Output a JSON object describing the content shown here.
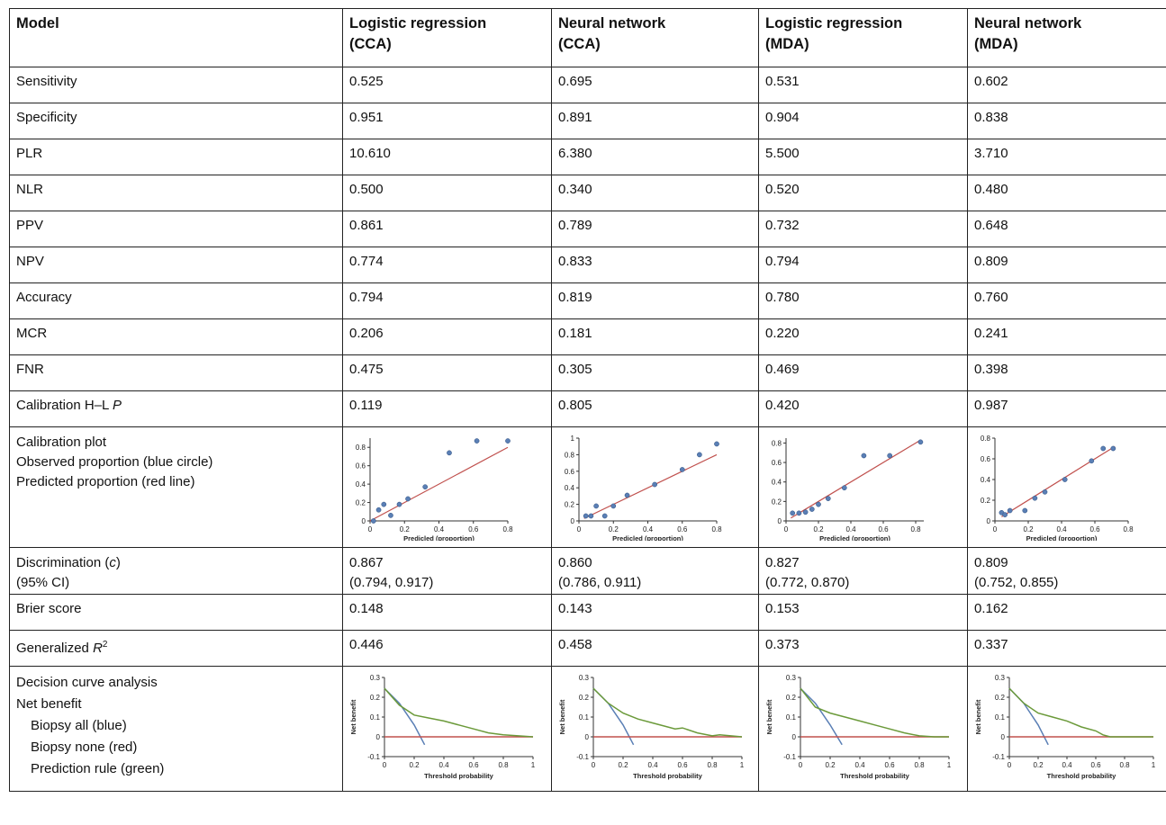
{
  "header": {
    "model": "Model",
    "columns": [
      [
        "Logistic regression",
        "(CCA)"
      ],
      [
        "Neural network",
        "(CCA)"
      ],
      [
        "Logistic regression",
        "(MDA)"
      ],
      [
        "Neural network",
        "(MDA)"
      ]
    ]
  },
  "rows": [
    {
      "label": "Sensitivity",
      "values": [
        "0.525",
        "0.695",
        "0.531",
        "0.602"
      ]
    },
    {
      "label": "Specificity",
      "values": [
        "0.951",
        "0.891",
        "0.904",
        "0.838"
      ]
    },
    {
      "label": "PLR",
      "values": [
        "10.610",
        "6.380",
        "5.500",
        "3.710"
      ]
    },
    {
      "label": "NLR",
      "values": [
        "0.500",
        "0.340",
        "0.520",
        "0.480"
      ]
    },
    {
      "label": "PPV",
      "values": [
        "0.861",
        "0.789",
        "0.732",
        "0.648"
      ]
    },
    {
      "label": "NPV",
      "values": [
        "0.774",
        "0.833",
        "0.794",
        "0.809"
      ]
    },
    {
      "label": "Accuracy",
      "values": [
        "0.794",
        "0.819",
        "0.780",
        "0.760"
      ]
    },
    {
      "label": "MCR",
      "values": [
        "0.206",
        "0.181",
        "0.220",
        "0.241"
      ]
    },
    {
      "label": "FNR",
      "values": [
        "0.475",
        "0.305",
        "0.469",
        "0.398"
      ]
    },
    {
      "label_prefix": "Calibration H–L ",
      "label_italic": "P",
      "values": [
        "0.119",
        "0.805",
        "0.420",
        "0.987"
      ]
    }
  ],
  "calibration_row": {
    "label_lines": [
      "Calibration plot",
      "Observed proportion (blue circle)",
      "Predicted proportion (red line)"
    ]
  },
  "discrimination_row": {
    "label_prefix": "Discrimination (",
    "label_italic": "c",
    "label_suffix": ")",
    "label_line2": "(95% CI)",
    "values": [
      "0.867",
      "0.860",
      "0.827",
      "0.809"
    ],
    "ci": [
      "(0.794, 0.917)",
      "(0.786, 0.911)",
      "(0.772, 0.870)",
      "(0.752, 0.855)"
    ]
  },
  "brier_row": {
    "label": "Brier score",
    "values": [
      "0.148",
      "0.143",
      "0.153",
      "0.162"
    ]
  },
  "r2_row": {
    "label_prefix": "Generalized ",
    "label_italic": "R",
    "label_sup": "2",
    "values": [
      "0.446",
      "0.458",
      "0.373",
      "0.337"
    ]
  },
  "dca_row": {
    "label_lines": [
      "Decision curve analysis",
      "Net benefit"
    ],
    "label_indented": [
      "Biopsy all (blue)",
      "Biopsy none (red)",
      "Prediction rule (green)"
    ]
  },
  "colors": {
    "observed": "#5a7fb5",
    "predicted": "#c0504d",
    "all": "#5a7fb5",
    "none": "#c0504d",
    "rule": "#6b9a3a"
  },
  "chart_data": [
    {
      "type": "scatter",
      "panel": "calibration",
      "model": "Logistic regression (CCA)",
      "xlabel": "Predicled (proportion)",
      "xticks": [
        "0",
        "0.2",
        "0.4",
        "0.6",
        "0.8"
      ],
      "yticks": [
        "0",
        "0.2",
        "0.4",
        "0.6",
        "0.8"
      ],
      "xlim": [
        0,
        0.8
      ],
      "ylim": [
        0,
        0.9
      ],
      "points": [
        [
          0.02,
          0.0
        ],
        [
          0.05,
          0.12
        ],
        [
          0.08,
          0.18
        ],
        [
          0.12,
          0.06
        ],
        [
          0.17,
          0.18
        ],
        [
          0.22,
          0.24
        ],
        [
          0.32,
          0.37
        ],
        [
          0.46,
          0.74
        ],
        [
          0.62,
          0.87
        ],
        [
          0.8,
          0.87
        ]
      ],
      "line": [
        [
          0,
          0
        ],
        [
          0.8,
          0.8
        ]
      ]
    },
    {
      "type": "scatter",
      "panel": "calibration",
      "model": "Neural network (CCA)",
      "xlabel": "Predicled (proportion)",
      "xticks": [
        "0",
        "0.2",
        "0.4",
        "0.6",
        "0.8"
      ],
      "yticks": [
        "0",
        "0.2",
        "0.4",
        "0.6",
        "0.8",
        "1"
      ],
      "xlim": [
        0,
        0.8
      ],
      "ylim": [
        0,
        1.0
      ],
      "points": [
        [
          0.04,
          0.06
        ],
        [
          0.07,
          0.06
        ],
        [
          0.1,
          0.18
        ],
        [
          0.15,
          0.06
        ],
        [
          0.2,
          0.18
        ],
        [
          0.28,
          0.31
        ],
        [
          0.44,
          0.44
        ],
        [
          0.6,
          0.62
        ],
        [
          0.7,
          0.8
        ],
        [
          0.8,
          0.93
        ]
      ],
      "line": [
        [
          0.03,
          0.03
        ],
        [
          0.8,
          0.8
        ]
      ]
    },
    {
      "type": "scatter",
      "panel": "calibration",
      "model": "Logistic regression (MDA)",
      "xlabel": "Predicled (proportion)",
      "xticks": [
        "0",
        "0.2",
        "0.4",
        "0.6",
        "0.8"
      ],
      "yticks": [
        "0",
        "0.2",
        "0.4",
        "0.6",
        "0.8"
      ],
      "xlim": [
        0,
        0.85
      ],
      "ylim": [
        0,
        0.85
      ],
      "points": [
        [
          0.04,
          0.08
        ],
        [
          0.08,
          0.08
        ],
        [
          0.12,
          0.09
        ],
        [
          0.16,
          0.12
        ],
        [
          0.2,
          0.17
        ],
        [
          0.26,
          0.23
        ],
        [
          0.36,
          0.34
        ],
        [
          0.48,
          0.67
        ],
        [
          0.64,
          0.67
        ],
        [
          0.83,
          0.81
        ]
      ],
      "line": [
        [
          0.03,
          0.03
        ],
        [
          0.83,
          0.83
        ]
      ]
    },
    {
      "type": "scatter",
      "panel": "calibration",
      "model": "Neural network (MDA)",
      "xlabel": "Predicled (proportion)",
      "xticks": [
        "0",
        "0.2",
        "0.4",
        "0.6",
        "0.8"
      ],
      "yticks": [
        "0",
        "0.2",
        "0.4",
        "0.6",
        "0.8"
      ],
      "xlim": [
        0,
        0.8
      ],
      "ylim": [
        0,
        0.8
      ],
      "points": [
        [
          0.04,
          0.08
        ],
        [
          0.06,
          0.06
        ],
        [
          0.09,
          0.1
        ],
        [
          0.18,
          0.1
        ],
        [
          0.24,
          0.22
        ],
        [
          0.3,
          0.28
        ],
        [
          0.42,
          0.4
        ],
        [
          0.58,
          0.58
        ],
        [
          0.65,
          0.7
        ],
        [
          0.71,
          0.7
        ]
      ],
      "line": [
        [
          0.04,
          0.04
        ],
        [
          0.72,
          0.72
        ]
      ]
    },
    {
      "type": "line",
      "panel": "decision-curve",
      "model": "Logistic regression (CCA)",
      "xlabel": "Threshold probability",
      "ylabel": "Net benefit",
      "xticks": [
        "0",
        "0.2",
        "0.4",
        "0.6",
        "0.8",
        "1"
      ],
      "yticks": [
        "-0.1",
        "0",
        "0.1",
        "0.2",
        "0.3"
      ],
      "xlim": [
        0,
        1
      ],
      "ylim": [
        -0.1,
        0.3
      ],
      "series": [
        {
          "name": "Biopsy all",
          "points": [
            [
              0,
              0.245
            ],
            [
              0.1,
              0.17
            ],
            [
              0.2,
              0.06
            ],
            [
              0.27,
              -0.04
            ]
          ]
        },
        {
          "name": "Biopsy none",
          "points": [
            [
              0,
              0
            ],
            [
              1,
              0
            ]
          ]
        },
        {
          "name": "Prediction rule",
          "points": [
            [
              0,
              0.245
            ],
            [
              0.1,
              0.16
            ],
            [
              0.2,
              0.11
            ],
            [
              0.3,
              0.095
            ],
            [
              0.4,
              0.08
            ],
            [
              0.5,
              0.06
            ],
            [
              0.6,
              0.04
            ],
            [
              0.7,
              0.02
            ],
            [
              0.8,
              0.01
            ],
            [
              0.9,
              0.005
            ],
            [
              1,
              0
            ]
          ]
        }
      ]
    },
    {
      "type": "line",
      "panel": "decision-curve",
      "model": "Neural network (CCA)",
      "xlabel": "Threshold probability",
      "ylabel": "Net benefit",
      "xticks": [
        "0",
        "0.2",
        "0.4",
        "0.6",
        "0.8",
        "1"
      ],
      "yticks": [
        "-0.1",
        "0",
        "0.1",
        "0.2",
        "0.3"
      ],
      "xlim": [
        0,
        1
      ],
      "ylim": [
        -0.1,
        0.3
      ],
      "series": [
        {
          "name": "Biopsy all",
          "points": [
            [
              0,
              0.245
            ],
            [
              0.1,
              0.17
            ],
            [
              0.2,
              0.06
            ],
            [
              0.27,
              -0.04
            ]
          ]
        },
        {
          "name": "Biopsy none",
          "points": [
            [
              0,
              0
            ],
            [
              1,
              0
            ]
          ]
        },
        {
          "name": "Prediction rule",
          "points": [
            [
              0,
              0.245
            ],
            [
              0.1,
              0.17
            ],
            [
              0.2,
              0.12
            ],
            [
              0.3,
              0.09
            ],
            [
              0.4,
              0.07
            ],
            [
              0.5,
              0.05
            ],
            [
              0.55,
              0.04
            ],
            [
              0.6,
              0.045
            ],
            [
              0.7,
              0.02
            ],
            [
              0.8,
              0.005
            ],
            [
              0.85,
              0.01
            ],
            [
              1,
              0
            ]
          ]
        }
      ]
    },
    {
      "type": "line",
      "panel": "decision-curve",
      "model": "Logistic regression (MDA)",
      "xlabel": "Threshold probability",
      "ylabel": "Net benefit",
      "xticks": [
        "0",
        "0.2",
        "0.4",
        "0.6",
        "0.8",
        "1"
      ],
      "yticks": [
        "-0.1",
        "0",
        "0.1",
        "0.2",
        "0.3"
      ],
      "xlim": [
        0,
        1
      ],
      "ylim": [
        -0.1,
        0.3
      ],
      "series": [
        {
          "name": "Biopsy all",
          "points": [
            [
              0,
              0.245
            ],
            [
              0.1,
              0.17
            ],
            [
              0.2,
              0.06
            ],
            [
              0.28,
              -0.04
            ]
          ]
        },
        {
          "name": "Biopsy none",
          "points": [
            [
              0,
              0
            ],
            [
              1,
              0
            ]
          ]
        },
        {
          "name": "Prediction rule",
          "points": [
            [
              0,
              0.245
            ],
            [
              0.1,
              0.15
            ],
            [
              0.2,
              0.12
            ],
            [
              0.3,
              0.1
            ],
            [
              0.4,
              0.08
            ],
            [
              0.5,
              0.06
            ],
            [
              0.6,
              0.04
            ],
            [
              0.7,
              0.02
            ],
            [
              0.8,
              0.005
            ],
            [
              0.9,
              0.0
            ],
            [
              1,
              0
            ]
          ]
        }
      ]
    },
    {
      "type": "line",
      "panel": "decision-curve",
      "model": "Neural network (MDA)",
      "xlabel": "Threshold probability",
      "ylabel": "Net benefit",
      "xticks": [
        "0",
        "0.2",
        "0.4",
        "0.6",
        "0.8",
        "1"
      ],
      "yticks": [
        "-0.1",
        "0",
        "0.1",
        "0.2",
        "0.3"
      ],
      "xlim": [
        0,
        1
      ],
      "ylim": [
        -0.1,
        0.3
      ],
      "series": [
        {
          "name": "Biopsy all",
          "points": [
            [
              0,
              0.245
            ],
            [
              0.1,
              0.17
            ],
            [
              0.2,
              0.06
            ],
            [
              0.27,
              -0.04
            ]
          ]
        },
        {
          "name": "Biopsy none",
          "points": [
            [
              0,
              0
            ],
            [
              1,
              0
            ]
          ]
        },
        {
          "name": "Prediction rule",
          "points": [
            [
              0,
              0.245
            ],
            [
              0.1,
              0.17
            ],
            [
              0.2,
              0.12
            ],
            [
              0.3,
              0.1
            ],
            [
              0.4,
              0.08
            ],
            [
              0.5,
              0.05
            ],
            [
              0.6,
              0.03
            ],
            [
              0.65,
              0.01
            ],
            [
              0.7,
              0.0
            ],
            [
              1,
              0
            ]
          ]
        }
      ]
    }
  ]
}
